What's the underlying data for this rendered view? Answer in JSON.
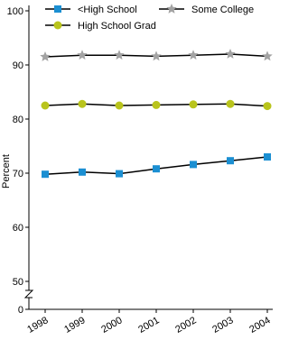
{
  "chart_data": {
    "type": "line",
    "y_label": "Percent",
    "x": [
      "1998",
      "1999",
      "2000",
      "2001",
      "2002",
      "2003",
      "2004"
    ],
    "series": [
      {
        "name": "<High School",
        "color": "#1b8fd2",
        "marker": "square",
        "values": [
          69.8,
          70.2,
          69.9,
          70.8,
          71.6,
          72.3,
          73.0
        ]
      },
      {
        "name": "High School Grad",
        "color": "#b9c41c",
        "marker": "circle",
        "values": [
          82.5,
          82.8,
          82.5,
          82.6,
          82.7,
          82.8,
          82.4
        ]
      },
      {
        "name": "Some College",
        "color": "#a3a3a3",
        "marker": "star",
        "values": [
          91.5,
          91.8,
          91.8,
          91.6,
          91.8,
          92.0,
          91.6
        ]
      }
    ],
    "ylim": [
      0,
      100
    ],
    "yticks": [
      0,
      50,
      60,
      70,
      80,
      90,
      100
    ],
    "axis_break": true
  }
}
